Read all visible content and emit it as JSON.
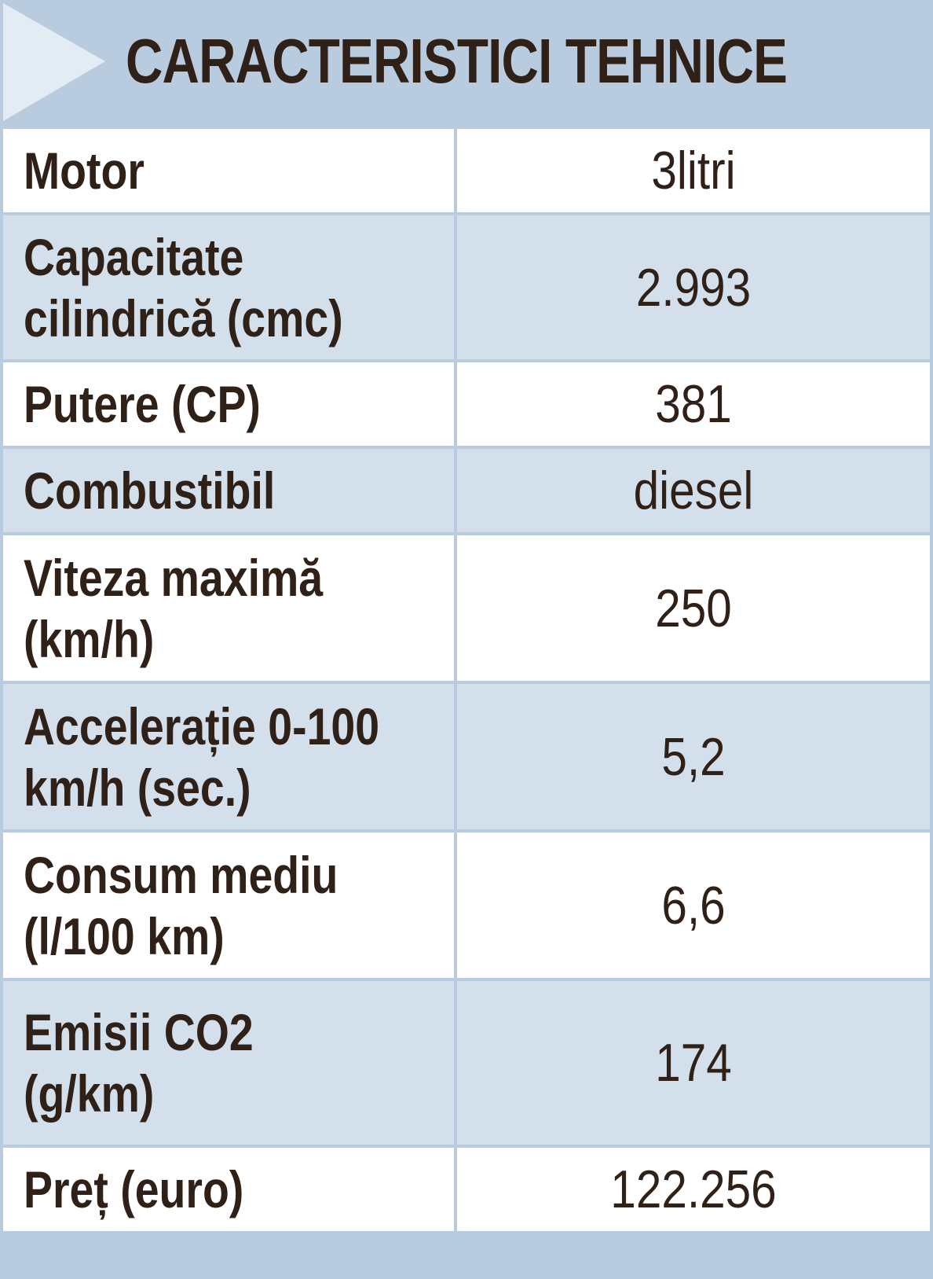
{
  "header": {
    "title": "CARACTERISTICI TEHNICE"
  },
  "rows": [
    {
      "label": "Motor",
      "value": "3litri"
    },
    {
      "label": "Capacitate\ncilindrică (cmc)",
      "value": "2.993"
    },
    {
      "label": "Putere (CP)",
      "value": "381"
    },
    {
      "label": "Combustibil",
      "value": "diesel"
    },
    {
      "label": "Viteza maximă\n(km/h)",
      "value": "250"
    },
    {
      "label": "Accelerație 0-100\nkm/h (sec.)",
      "value": "5,2"
    },
    {
      "label": "Consum mediu\n(l/100 km)",
      "value": "6,6"
    },
    {
      "label": "Emisii CO2\n(g/km)",
      "value": "174"
    },
    {
      "label": "Preț (euro)",
      "value": "122.256"
    }
  ],
  "colors": {
    "header_band": "#b8cbdf",
    "row_dark": "#d3e0ec",
    "row_light": "#ffffff",
    "text": "#2f2118",
    "arrow": "#e3ecf5"
  }
}
